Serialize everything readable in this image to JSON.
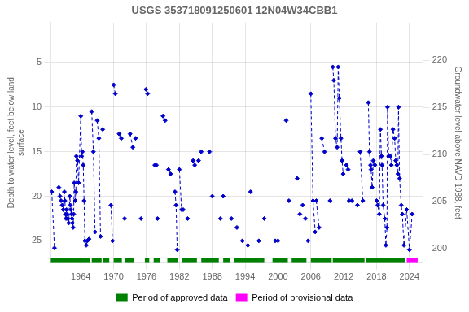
{
  "chart_data": {
    "type": "line",
    "title": "USGS 353718091250601 12N04W34CBB1",
    "y_label": "Depth to water level, feet below land\nsurface",
    "y2_label": "Groundwater level above NAVD 1988, feet",
    "xlim": [
      1958.5,
      2026.5
    ],
    "xticks": [
      1964,
      1970,
      1976,
      1982,
      1988,
      1994,
      2000,
      2006,
      2012,
      2018,
      2024
    ],
    "ylim": [
      27.5,
      0.5
    ],
    "yticks": [
      5,
      10,
      15,
      20,
      25
    ],
    "y2lim": [
      198.5,
      224.0
    ],
    "y2ticks": [
      200,
      205,
      210,
      215,
      220
    ],
    "grid": true,
    "color": "#0000cc",
    "marker": "diamond",
    "line_style": "dashed",
    "series": [
      {
        "x": [
          1958.7,
          1959.2
        ],
        "values": [
          19.5,
          25.8
        ]
      },
      {
        "x": [
          1960.0,
          1960.2,
          1960.4,
          1960.6,
          1960.8,
          1961.0,
          1961.1,
          1961.2,
          1961.3,
          1961.4,
          1961.5,
          1961.6,
          1961.7,
          1961.8,
          1962.0,
          1962.1,
          1962.2,
          1962.3,
          1962.4,
          1962.5,
          1962.6,
          1962.7,
          1962.8,
          1963.0,
          1963.1,
          1963.2,
          1963.4,
          1963.6,
          1964.0,
          1964.15,
          1964.3,
          1964.45,
          1964.6,
          1964.75,
          1965.0,
          1965.2,
          1965.5
        ],
        "values": [
          19.0,
          20.0,
          20.5,
          21.0,
          21.5,
          19.5,
          20.5,
          22.0,
          22.5,
          21.5,
          22.0,
          22.5,
          22.5,
          23.0,
          20.0,
          21.0,
          21.5,
          22.0,
          22.5,
          23.0,
          23.5,
          22.0,
          18.5,
          20.5,
          19.5,
          15.5,
          16.0,
          18.5,
          11.0,
          15.5,
          15.0,
          16.5,
          20.5,
          25.0,
          25.5,
          25.0,
          24.8
        ]
      },
      {
        "x": [
          1966.0,
          1966.3,
          1966.6
        ],
        "values": [
          10.5,
          15.0,
          24.0
        ]
      },
      {
        "x": [
          1967.0,
          1967.3,
          1967.6
        ],
        "values": [
          11.5,
          13.5,
          24.5
        ]
      },
      {
        "x": [
          1968.0
        ],
        "values": [
          12.5
        ]
      },
      {
        "x": [
          1969.5,
          1969.8
        ],
        "values": [
          21.0,
          25.0
        ]
      },
      {
        "x": [
          1970.0,
          1970.3
        ],
        "values": [
          7.5,
          8.5
        ]
      },
      {
        "x": [
          1971.0,
          1971.4
        ],
        "values": [
          13.0,
          13.5
        ]
      },
      {
        "x": [
          1972.0
        ],
        "values": [
          22.5
        ]
      },
      {
        "x": [
          1973.0,
          1973.5
        ],
        "values": [
          13.0,
          14.5
        ]
      },
      {
        "x": [
          1974.0
        ],
        "values": [
          13.5
        ]
      },
      {
        "x": [
          1975.0
        ],
        "values": [
          22.5
        ]
      },
      {
        "x": [
          1975.9,
          1976.2
        ],
        "values": [
          8.0,
          8.5
        ]
      },
      {
        "x": [
          1977.5,
          1977.8
        ],
        "values": [
          16.5,
          16.5
        ]
      },
      {
        "x": [
          1978.0
        ],
        "values": [
          22.5
        ]
      },
      {
        "x": [
          1979.0,
          1979.4
        ],
        "values": [
          11.0,
          11.5
        ]
      },
      {
        "x": [
          1980.0,
          1980.4
        ],
        "values": [
          17.0,
          17.5
        ]
      },
      {
        "x": [
          1981.2,
          1981.4,
          1981.6
        ],
        "values": [
          19.5,
          21.0,
          26.0
        ]
      },
      {
        "x": [
          1982.0,
          1982.4,
          1982.7
        ],
        "values": [
          17.0,
          21.5,
          21.5
        ]
      },
      {
        "x": [
          1983.5
        ],
        "values": [
          22.5
        ]
      },
      {
        "x": [
          1984.5,
          1984.8
        ],
        "values": [
          16.0,
          16.5
        ]
      },
      {
        "x": [
          1985.5
        ],
        "values": [
          16.0
        ]
      },
      {
        "x": [
          1986.0
        ],
        "values": [
          15.0
        ]
      },
      {
        "x": [
          1987.5
        ],
        "values": [
          15.0
        ]
      },
      {
        "x": [
          1988.0
        ],
        "values": [
          20.0
        ]
      },
      {
        "x": [
          1989.5
        ],
        "values": [
          22.5
        ]
      },
      {
        "x": [
          1990.0
        ],
        "values": [
          20.0
        ]
      },
      {
        "x": [
          1991.5
        ],
        "values": [
          22.5
        ]
      },
      {
        "x": [
          1992.5
        ],
        "values": [
          23.5
        ]
      },
      {
        "x": [
          1993.5
        ],
        "values": [
          25.0
        ]
      },
      {
        "x": [
          1994.5
        ],
        "values": [
          25.5
        ]
      },
      {
        "x": [
          1995.0
        ],
        "values": [
          19.5
        ]
      },
      {
        "x": [
          1996.5
        ],
        "values": [
          25.0
        ]
      },
      {
        "x": [
          1997.5
        ],
        "values": [
          22.5
        ]
      },
      {
        "x": [
          1999.5
        ],
        "values": [
          25.0
        ]
      },
      {
        "x": [
          2000.0
        ],
        "values": [
          25.0
        ]
      },
      {
        "x": [
          2001.5
        ],
        "values": [
          11.5
        ]
      },
      {
        "x": [
          2002.0
        ],
        "values": [
          20.5
        ]
      },
      {
        "x": [
          2003.5
        ],
        "values": [
          18.0
        ]
      },
      {
        "x": [
          2004.0
        ],
        "values": [
          22.0
        ]
      },
      {
        "x": [
          2004.5
        ],
        "values": [
          21.0
        ]
      },
      {
        "x": [
          2005.0
        ],
        "values": [
          22.5
        ]
      },
      {
        "x": [
          2005.5
        ],
        "values": [
          25.0
        ]
      },
      {
        "x": [
          2006.0,
          2006.4,
          2006.8
        ],
        "values": [
          8.5,
          20.5,
          24.0
        ]
      },
      {
        "x": [
          2007.0,
          2007.5
        ],
        "values": [
          20.5,
          23.5
        ]
      },
      {
        "x": [
          2008.0,
          2008.5
        ],
        "values": [
          13.5,
          15.0
        ]
      },
      {
        "x": [
          2009.5
        ],
        "values": [
          20.5
        ]
      },
      {
        "x": [
          2010.0,
          2010.2,
          2010.5,
          2010.8,
          2011.0,
          2011.2,
          2011.5,
          2011.7,
          2011.9
        ],
        "values": [
          5.5,
          7.0,
          13.5,
          14.5,
          5.5,
          9.0,
          13.5,
          16.0,
          17.5
        ]
      },
      {
        "x": [
          2012.5,
          2012.8
        ],
        "values": [
          16.5,
          17.0
        ]
      },
      {
        "x": [
          2013.0,
          2013.5
        ],
        "values": [
          20.5,
          20.5
        ]
      },
      {
        "x": [
          2014.5
        ],
        "values": [
          21.0
        ]
      },
      {
        "x": [
          2015.0,
          2015.5
        ],
        "values": [
          15.0,
          20.5
        ]
      },
      {
        "x": [
          2016.5,
          2016.7,
          2016.9,
          2017.0,
          2017.2,
          2017.4,
          2017.7
        ],
        "values": [
          9.5,
          15.0,
          16.5,
          17.0,
          19.0,
          16.0,
          16.5
        ]
      },
      {
        "x": [
          2018.0,
          2018.2,
          2018.5,
          2018.7,
          2018.9,
          2019.0,
          2019.2,
          2019.5,
          2019.7,
          2019.9,
          2020.0,
          2020.2,
          2020.5,
          2020.7,
          2021.0,
          2021.3,
          2021.5,
          2021.7,
          2021.9,
          2022.0,
          2022.2,
          2022.5,
          2022.7,
          2023.0,
          2023.5,
          2024.0,
          2024.5
        ],
        "values": [
          20.5,
          21.0,
          22.0,
          12.5,
          15.5,
          16.5,
          21.0,
          22.5,
          25.5,
          23.5,
          10.0,
          15.5,
          15.5,
          16.5,
          12.5,
          13.5,
          16.0,
          16.5,
          17.5,
          10.0,
          18.0,
          21.0,
          22.0,
          25.5,
          21.5,
          26.0,
          22.0
        ]
      }
    ],
    "spans": [
      {
        "name": "Period of approved data",
        "color": "#008000",
        "ranges": [
          [
            1958.5,
            1965.7
          ],
          [
            1966.0,
            1967.8
          ],
          [
            1968.0,
            1969.2
          ],
          [
            1970.0,
            1971.5
          ],
          [
            1972.0,
            1973.7
          ],
          [
            1975.7,
            1976.5
          ],
          [
            1977.3,
            1978.5
          ],
          [
            1979.8,
            1981.8
          ],
          [
            1982.5,
            1985.2
          ],
          [
            1986.0,
            1989.2
          ],
          [
            1990.0,
            1991.2
          ],
          [
            1992.0,
            1997.5
          ],
          [
            1999.0,
            2001.8
          ],
          [
            2002.5,
            2005.2
          ],
          [
            2006.0,
            2009.8
          ],
          [
            2010.0,
            2015.8
          ],
          [
            2016.0,
            2023.2
          ]
        ]
      },
      {
        "name": "Period of provisional data",
        "color": "#ff00ff",
        "ranges": [
          [
            2023.5,
            2025.5
          ]
        ]
      }
    ]
  }
}
